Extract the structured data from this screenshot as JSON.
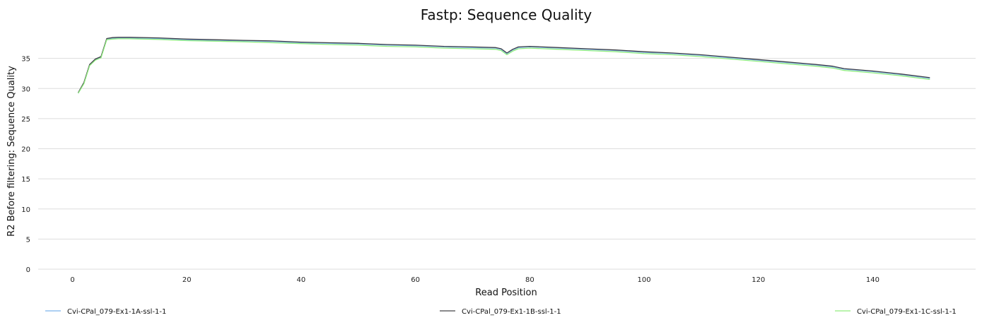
{
  "chart_data": {
    "type": "line",
    "title": "Fastp: Sequence Quality",
    "xlabel": "Read Position",
    "ylabel": "R2 Before filtering: Sequence Quality",
    "xlim": [
      -6,
      158
    ],
    "ylim": [
      0,
      40
    ],
    "xticks": [
      0,
      20,
      40,
      60,
      80,
      100,
      120,
      140
    ],
    "yticks": [
      0,
      5,
      10,
      15,
      20,
      25,
      30,
      35
    ],
    "grid": true,
    "legend_position": "bottom",
    "series": [
      {
        "name": "Cvi-CPal_079-Ex1-1A-ssl-1-1",
        "color": "#7cb5ec",
        "x": [
          1,
          2,
          3,
          4,
          5,
          6,
          7,
          8,
          10,
          15,
          20,
          25,
          30,
          35,
          40,
          45,
          50,
          55,
          60,
          65,
          70,
          74,
          75,
          76,
          77,
          78,
          80,
          85,
          90,
          95,
          100,
          105,
          110,
          115,
          120,
          125,
          130,
          133,
          135,
          140,
          145,
          150
        ],
        "y": [
          29.2,
          30.9,
          33.9,
          34.8,
          35.2,
          38.2,
          38.35,
          38.4,
          38.4,
          38.3,
          38.1,
          38.0,
          37.9,
          37.8,
          37.6,
          37.5,
          37.4,
          37.2,
          37.1,
          36.9,
          36.8,
          36.7,
          36.5,
          35.8,
          36.4,
          36.8,
          36.9,
          36.7,
          36.5,
          36.3,
          36.0,
          35.8,
          35.5,
          35.1,
          34.7,
          34.3,
          33.9,
          33.6,
          33.2,
          32.8,
          32.3,
          31.7
        ]
      },
      {
        "name": "Cvi-CPal_079-Ex1-1B-ssl-1-1",
        "color": "#434348",
        "x": [
          1,
          2,
          3,
          4,
          5,
          6,
          7,
          8,
          10,
          15,
          20,
          25,
          30,
          35,
          40,
          45,
          50,
          55,
          60,
          65,
          70,
          74,
          75,
          76,
          77,
          78,
          80,
          85,
          90,
          95,
          100,
          105,
          110,
          115,
          120,
          125,
          130,
          133,
          135,
          140,
          145,
          150
        ],
        "y": [
          29.3,
          31.0,
          34.0,
          34.9,
          35.3,
          38.3,
          38.45,
          38.5,
          38.5,
          38.4,
          38.2,
          38.1,
          38.0,
          37.9,
          37.7,
          37.6,
          37.5,
          37.3,
          37.2,
          37.0,
          36.9,
          36.8,
          36.6,
          35.9,
          36.5,
          36.9,
          37.0,
          36.8,
          36.6,
          36.4,
          36.1,
          35.9,
          35.6,
          35.2,
          34.8,
          34.4,
          34.0,
          33.7,
          33.3,
          32.9,
          32.4,
          31.8
        ]
      },
      {
        "name": "Cvi-CPal_079-Ex1-1C-ssl-1-1",
        "color": "#90ed7d",
        "x": [
          1,
          2,
          3,
          4,
          5,
          6,
          7,
          8,
          10,
          15,
          20,
          25,
          30,
          35,
          40,
          45,
          50,
          55,
          60,
          65,
          70,
          74,
          75,
          76,
          77,
          78,
          80,
          85,
          90,
          95,
          100,
          105,
          110,
          115,
          120,
          125,
          130,
          133,
          135,
          140,
          145,
          150
        ],
        "y": [
          29.2,
          30.8,
          33.8,
          34.7,
          35.1,
          38.1,
          38.2,
          38.25,
          38.25,
          38.15,
          37.95,
          37.85,
          37.75,
          37.6,
          37.45,
          37.3,
          37.2,
          37.0,
          36.9,
          36.7,
          36.6,
          36.5,
          36.3,
          35.6,
          36.2,
          36.6,
          36.7,
          36.5,
          36.3,
          36.1,
          35.8,
          35.6,
          35.3,
          34.9,
          34.5,
          34.1,
          33.7,
          33.4,
          33.0,
          32.6,
          32.1,
          31.5
        ]
      }
    ]
  }
}
